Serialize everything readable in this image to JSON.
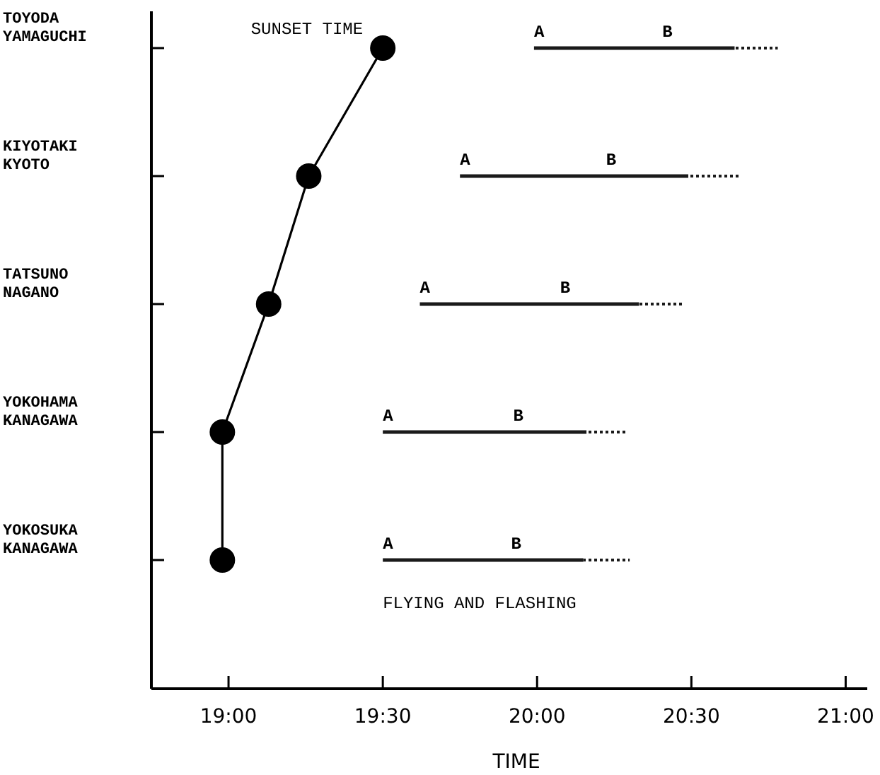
{
  "chart_data": {
    "type": "bar",
    "orientation": "horizontal",
    "xlabel": "TIME",
    "categories": [
      "TOYODA YAMAGUCHI",
      "KIYOTAKI KYOTO",
      "TATSUNO NAGANO",
      "YOKOHAMA KANAGAWA",
      "YOKOSUKA KANAGAWA"
    ],
    "xlim": [
      18.75,
      21.07
    ],
    "xticks": [
      {
        "value": 19,
        "label": "19:00"
      },
      {
        "value": 19.5,
        "label": "19:30"
      },
      {
        "value": 20,
        "label": "20:00"
      },
      {
        "value": 20.5,
        "label": "20:30"
      },
      {
        "value": 21,
        "label": "21:00"
      }
    ],
    "grid": false,
    "legend": false,
    "series": [
      {
        "name": "SUNSET TIME",
        "type": "line",
        "marker": "circle",
        "color": "#000000",
        "values": [
          19.5,
          19.26,
          19.13,
          18.98,
          18.98
        ]
      },
      {
        "name": "FLYING AND FLASHING",
        "color": "#1a1a1a",
        "base": [
          19.99,
          19.75,
          19.62,
          19.5,
          19.5
        ],
        "values": [
          0.65,
          0.74,
          0.71,
          0.66,
          0.65
        ]
      },
      {
        "line_style": "dotted",
        "color": "#1a1a1a",
        "base": [
          20.64,
          20.49,
          20.33,
          20.16,
          20.15
        ],
        "values": [
          0.14,
          0.17,
          0.14,
          0.13,
          0.15
        ]
      }
    ],
    "annotations": [
      "A",
      "B",
      "A",
      "B",
      "A",
      "B",
      "A",
      "B",
      "A",
      "B"
    ]
  }
}
